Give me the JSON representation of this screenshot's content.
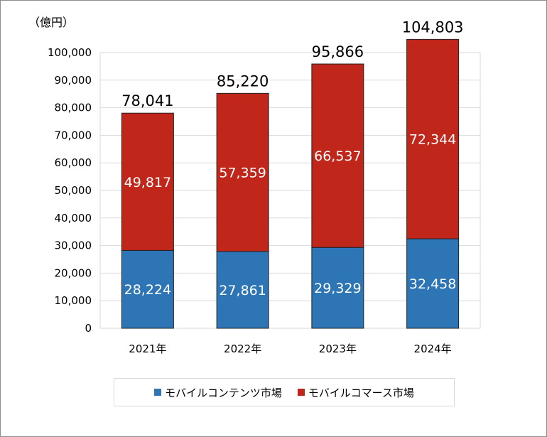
{
  "chart_data": {
    "type": "bar",
    "stacked": true,
    "unit_label": "（億円）",
    "categories": [
      "2021年",
      "2022年",
      "2023年",
      "2024年"
    ],
    "series": [
      {
        "name": "モバイルコンテンツ市場",
        "values": [
          28224,
          27861,
          29329,
          32458
        ],
        "labels": [
          "28,224",
          "27,861",
          "29,329",
          "32,458"
        ],
        "color": "#2e75b6"
      },
      {
        "name": "モバイルコマース市場",
        "values": [
          49817,
          57359,
          66537,
          72344
        ],
        "labels": [
          "49,817",
          "57,359",
          "66,537",
          "72,344"
        ],
        "color": "#c0271a"
      }
    ],
    "totals": [
      78041,
      85220,
      95866,
      104803
    ],
    "total_labels": [
      "78,041",
      "85,220",
      "95,866",
      "104,803"
    ],
    "ylim": [
      0,
      100000
    ],
    "y_ticks": [
      0,
      10000,
      20000,
      30000,
      40000,
      50000,
      60000,
      70000,
      80000,
      90000,
      100000
    ],
    "y_tick_labels": [
      "0",
      "10,000",
      "20,000",
      "30,000",
      "40,000",
      "50,000",
      "60,000",
      "70,000",
      "80,000",
      "90,000",
      "100,000"
    ],
    "grid": true,
    "legend_position": "bottom",
    "title": "",
    "xlabel": "",
    "ylabel": ""
  }
}
